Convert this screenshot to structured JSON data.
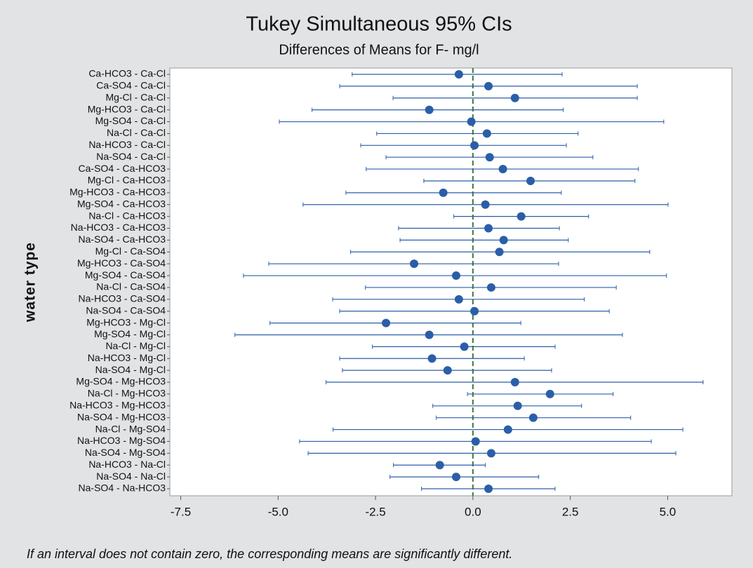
{
  "chart_data": {
    "type": "interval",
    "title": "Tukey Simultaneous 95% CIs",
    "subtitle": "Differences of Means for F- mg/l",
    "y_label": "water type",
    "footnote": "If an interval does not contain zero, the corresponding means are significantly different.",
    "color": "#2b5ea8",
    "reference_line": 0,
    "reference_color": "#3a7d3a",
    "categories": [
      "Ca-HCO3 - Ca-Cl",
      "Ca-SO4 - Ca-Cl",
      "Mg-Cl - Ca-Cl",
      "Mg-HCO3 - Ca-Cl",
      "Mg-SO4 - Ca-Cl",
      "Na-Cl - Ca-Cl",
      "Na-HCO3 - Ca-Cl",
      "Na-SO4 - Ca-Cl",
      "Ca-SO4 - Ca-HCO3",
      "Mg-Cl - Ca-HCO3",
      "Mg-HCO3 - Ca-HCO3",
      "Mg-SO4 - Ca-HCO3",
      "Na-Cl - Ca-HCO3",
      "Na-HCO3 - Ca-HCO3",
      "Na-SO4 - Ca-HCO3",
      "Mg-Cl - Ca-SO4",
      "Mg-HCO3 - Ca-SO4",
      "Mg-SO4 - Ca-SO4",
      "Na-Cl - Ca-SO4",
      "Na-HCO3 - Ca-SO4",
      "Na-SO4 - Ca-SO4",
      "Mg-HCO3 - Mg-Cl",
      "Mg-SO4 - Mg-Cl",
      "Na-Cl - Mg-Cl",
      "Na-HCO3 - Mg-Cl",
      "Na-SO4 - Mg-Cl",
      "Mg-SO4 - Mg-HCO3",
      "Na-Cl - Mg-HCO3",
      "Na-HCO3 - Mg-HCO3",
      "Na-SO4 - Mg-HCO3",
      "Na-Cl - Mg-SO4",
      "Na-HCO3 - Mg-SO4",
      "Na-SO4 - Mg-SO4",
      "Na-HCO3 - Na-Cl",
      "Na-SO4 - Na-Cl",
      "Na-SO4 - Na-HCO3"
    ],
    "values": [
      -0.36,
      0.4,
      1.08,
      -1.12,
      -0.04,
      0.36,
      0.04,
      0.43,
      0.77,
      1.48,
      -0.76,
      0.32,
      1.24,
      0.4,
      0.79,
      0.68,
      -1.51,
      -0.43,
      0.47,
      -0.36,
      0.04,
      -2.23,
      -1.12,
      -0.22,
      -1.05,
      -0.65,
      1.08,
      1.98,
      1.15,
      1.55,
      0.9,
      0.07,
      0.47,
      -0.85,
      -0.43,
      0.4
    ],
    "lower": [
      -3.1,
      -3.42,
      -2.05,
      -4.13,
      -4.97,
      -2.47,
      -2.88,
      -2.23,
      -2.74,
      -1.26,
      -3.26,
      -4.36,
      -0.49,
      -1.91,
      -1.87,
      -3.14,
      -5.24,
      -5.89,
      -2.76,
      -3.6,
      -3.42,
      -5.21,
      -6.11,
      -2.58,
      -3.42,
      -3.35,
      -3.77,
      -0.14,
      -1.03,
      -0.94,
      -3.59,
      -4.45,
      -4.23,
      -2.04,
      -2.13,
      -1.32
    ],
    "upper": [
      2.29,
      4.22,
      4.22,
      2.32,
      4.9,
      2.7,
      2.4,
      3.08,
      4.25,
      4.16,
      2.27,
      5.01,
      2.97,
      2.22,
      2.45,
      4.54,
      2.2,
      4.97,
      3.68,
      2.86,
      3.5,
      1.23,
      3.84,
      2.11,
      1.32,
      2.02,
      5.91,
      3.6,
      2.79,
      4.05,
      5.39,
      4.58,
      5.21,
      0.32,
      1.69,
      2.11
    ],
    "xlim": [
      -7.78,
      6.65
    ],
    "xticks": [
      {
        "value": -7.5,
        "label": "-7.5"
      },
      {
        "value": -5,
        "label": "-5.0"
      },
      -2.5,
      {
        "value": 0,
        "label": "0.0"
      },
      2.5,
      {
        "value": 5,
        "label": "5.0"
      }
    ]
  }
}
